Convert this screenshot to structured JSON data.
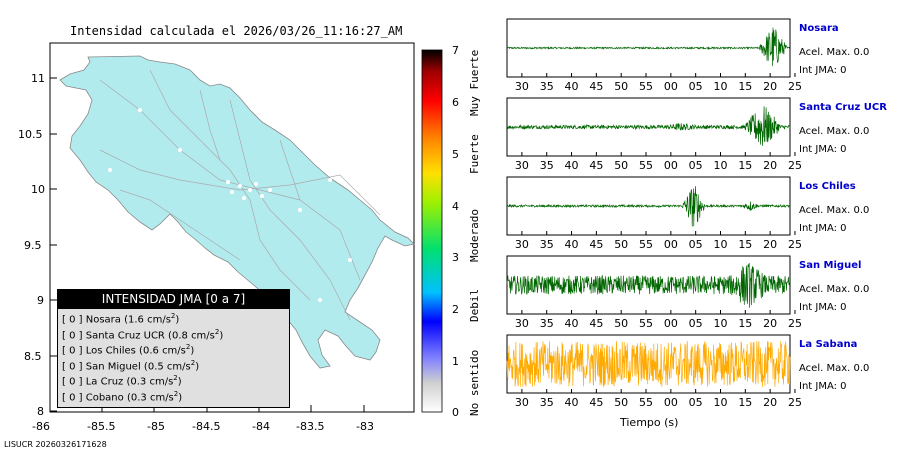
{
  "title": "Intensidad calculada el 2026/03/26_11:16:27_AM",
  "map": {
    "xticks": [
      "-86",
      "-85.5",
      "-85",
      "-84.5",
      "-84",
      "-83.5",
      "-83"
    ],
    "yticks": [
      "11",
      "10.5",
      "10",
      "9.5",
      "9",
      "8.5",
      "8"
    ],
    "land_color": "#b2ebee"
  },
  "legend": {
    "header": "INTENSIDAD JMA [0 a 7]",
    "items": [
      {
        "level": "[ 0 ]",
        "name": "Nosara",
        "value": "1.6"
      },
      {
        "level": "[ 0 ]",
        "name": "Santa Cruz UCR",
        "value": "0.8"
      },
      {
        "level": "[ 0 ]",
        "name": "Los Chiles",
        "value": "0.6"
      },
      {
        "level": "[ 0 ]",
        "name": "San Miguel",
        "value": "0.5"
      },
      {
        "level": "[ 0 ]",
        "name": "La Cruz",
        "value": "0.3"
      },
      {
        "level": "[ 0 ]",
        "name": "Cobano",
        "value": "0.3"
      }
    ],
    "unit": "cm/s",
    "unit_exp": "2"
  },
  "colorbar": {
    "ticks": [
      "7",
      "6",
      "5",
      "4",
      "3",
      "2",
      "1",
      "0"
    ],
    "words": [
      "Muy Fuerte",
      "Fuerte",
      "Moderado",
      "Debil",
      "No sentido"
    ]
  },
  "chart_data": {
    "type": "line",
    "xlabel": "Tiempo (s)",
    "xtick_labels": [
      "30",
      "35",
      "40",
      "45",
      "50",
      "55",
      "00",
      "05",
      "10",
      "15",
      "20",
      "25"
    ],
    "series": [
      {
        "name": "Nosara",
        "accel_label": "Acel. Max. 0.0",
        "jma_label": "Int JMA: 0",
        "color": "#006600",
        "noise": 0.03,
        "bursts": [
          {
            "t": 23.6,
            "amp": 0.9,
            "dur": 3
          },
          {
            "t": 22.8,
            "amp": 0.6,
            "dur": 2
          }
        ]
      },
      {
        "name": "Santa Cruz UCR",
        "accel_label": "Acel. Max. 0.0",
        "jma_label": "Int JMA: 0",
        "color": "#006600",
        "noise": 0.07,
        "bursts": [
          {
            "t": 21.5,
            "amp": 0.9,
            "dur": 4
          },
          {
            "t": 5.0,
            "amp": 0.15,
            "dur": 6
          }
        ]
      },
      {
        "name": "Los Chiles",
        "accel_label": "Acel. Max. 0.0",
        "jma_label": "Int JMA: 0",
        "color": "#006600",
        "noise": 0.04,
        "bursts": [
          {
            "t": 7.6,
            "amp": 0.9,
            "dur": 2.5
          },
          {
            "t": 19.0,
            "amp": 0.2,
            "dur": 2
          }
        ]
      },
      {
        "name": "San Miguel",
        "accel_label": "Acel. Max. 0.0",
        "jma_label": "Int JMA: 0",
        "color": "#006600",
        "noise": 0.35,
        "bursts": [
          {
            "t": 18.5,
            "amp": 0.9,
            "dur": 6
          }
        ]
      },
      {
        "name": "La Sabana",
        "accel_label": "Acel. Max. 0.0",
        "jma_label": "Int JMA: 0",
        "color": "#ffaa00",
        "noise": 0.85,
        "bursts": []
      }
    ]
  },
  "footer": "LISUCR 20260326171628"
}
